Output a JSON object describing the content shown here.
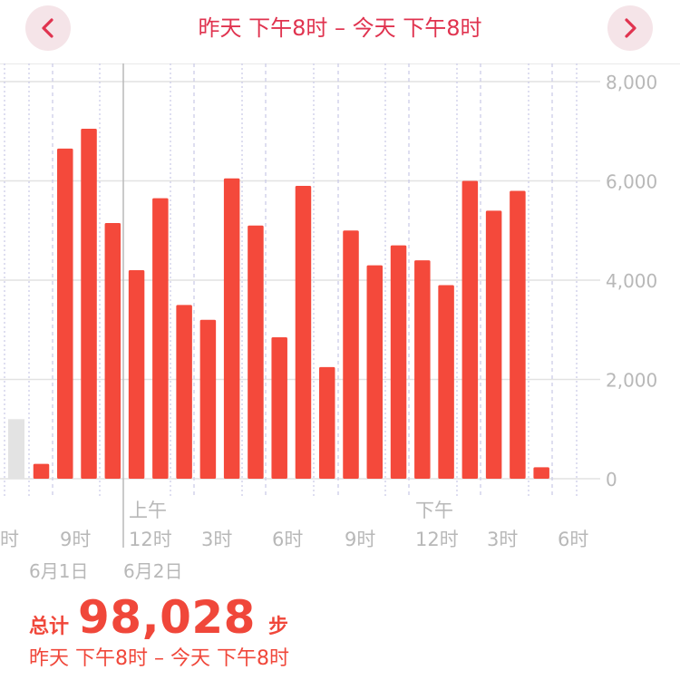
{
  "header": {
    "range_title": "昨天 下午8时 – 今天 下午8时",
    "prev_icon": "chevron-left-icon",
    "next_icon": "chevron-right-icon"
  },
  "colors": {
    "bar": "#f4493b",
    "bar_faded": "#e3e3e3",
    "accent": "#e0334f",
    "nav_bg": "#f5e4e8",
    "axis_text": "#b8b8b8",
    "grid": "#e2e2e2",
    "dotted_grid": "#c9c9e6"
  },
  "chart_data": {
    "type": "bar",
    "ylim": [
      0,
      8000
    ],
    "yticks": [
      "0",
      "2,000",
      "4,000",
      "6,000",
      "8,000"
    ],
    "grid": true,
    "faded_bar": {
      "value": 1200
    },
    "values": [
      300,
      6650,
      7050,
      5150,
      4200,
      5650,
      3500,
      3200,
      6050,
      5100,
      2850,
      5900,
      2250,
      5000,
      4300,
      4700,
      4400,
      3900,
      6000,
      5400,
      5800,
      230
    ],
    "xticks": [
      "时",
      "9时",
      "上午",
      "12时",
      "3时",
      "6时",
      "9时",
      "下午",
      "12时",
      "3时",
      "6时"
    ],
    "day_labels": [
      "6月1日",
      "6月2日"
    ]
  },
  "summary": {
    "total_label": "总计",
    "total_value": "98,028",
    "unit": "步",
    "range": "昨天 下午8时 – 今天 下午8时"
  }
}
